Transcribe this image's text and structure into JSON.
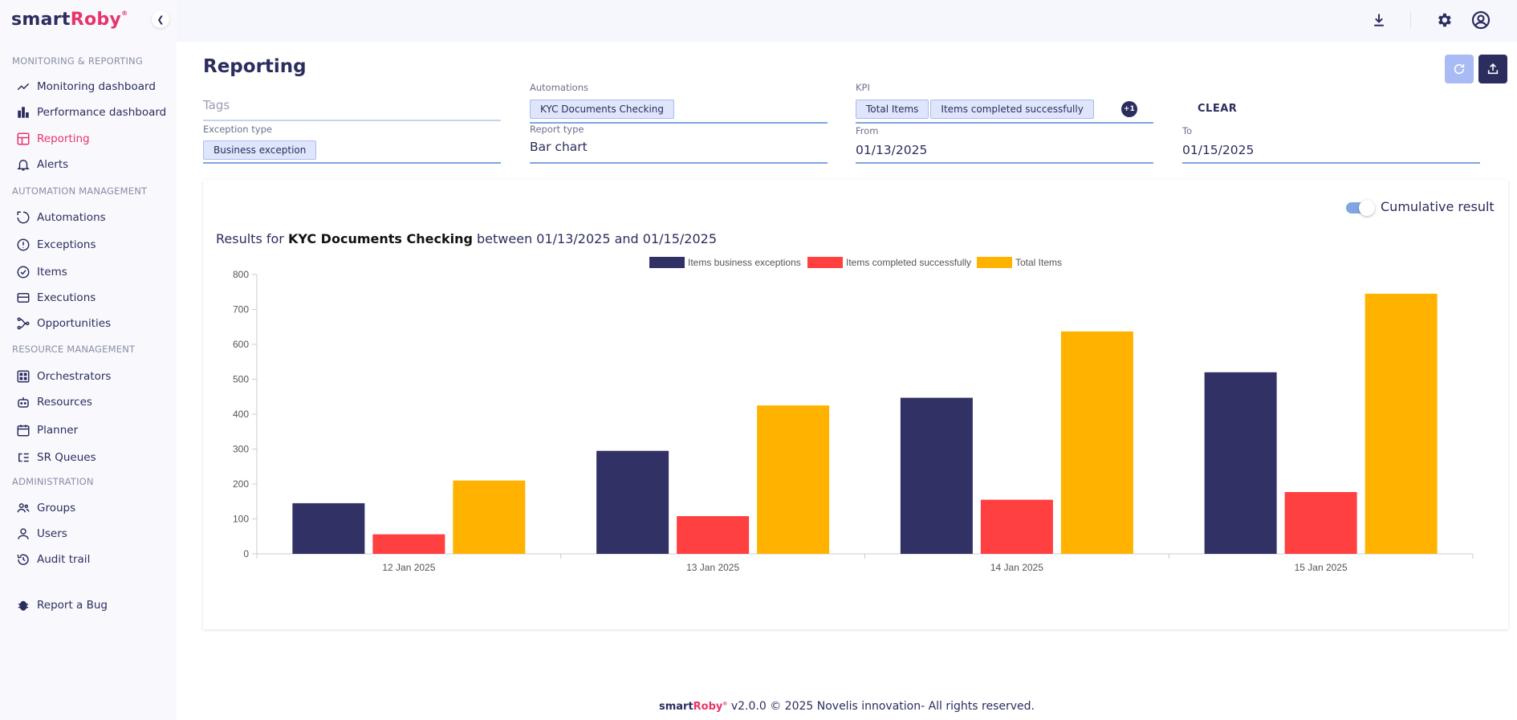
{
  "app": {
    "logo_main": "smart",
    "logo_accent": "Roby",
    "logo_mark": "®"
  },
  "sidebar": {
    "sections": [
      {
        "title": "MONITORING & REPORTING"
      },
      {
        "title": "AUTOMATION MANAGEMENT"
      },
      {
        "title": "RESOURCE MANAGEMENT"
      },
      {
        "title": "ADMINISTRATION"
      }
    ],
    "items": [
      {
        "label": "Monitoring dashboard",
        "icon": "trend-line-icon"
      },
      {
        "label": "Performance dashboard",
        "icon": "bar-chart-icon"
      },
      {
        "label": "Reporting",
        "icon": "layout-icon",
        "active": true
      },
      {
        "label": "Alerts",
        "icon": "bell-icon"
      },
      {
        "label": "Automations",
        "icon": "loop-icon"
      },
      {
        "label": "Exceptions",
        "icon": "alert-circle-icon"
      },
      {
        "label": "Items",
        "icon": "check-circle-icon"
      },
      {
        "label": "Executions",
        "icon": "card-icon"
      },
      {
        "label": "Opportunities",
        "icon": "branch-icon"
      },
      {
        "label": "Orchestrators",
        "icon": "grid-icon"
      },
      {
        "label": "Resources",
        "icon": "robot-icon"
      },
      {
        "label": "Planner",
        "icon": "calendar-icon"
      },
      {
        "label": "SR Queues",
        "icon": "queue-icon"
      },
      {
        "label": "Groups",
        "icon": "users-icon"
      },
      {
        "label": "Users",
        "icon": "user-icon"
      },
      {
        "label": "Audit trail",
        "icon": "history-icon"
      },
      {
        "label": "Report a Bug",
        "icon": "bug-icon"
      }
    ]
  },
  "page": {
    "title": "Reporting"
  },
  "filters": {
    "tags_placeholder": "Tags",
    "automations_label": "Automations",
    "automations_chip": "KYC Documents Checking",
    "kpi_label": "KPI",
    "kpi_chips": [
      "Total Items",
      "Items completed successfully"
    ],
    "kpi_more": "+1",
    "clear_label": "CLEAR",
    "exception_type_label": "Exception type",
    "exception_type_chip": "Business exception",
    "report_type_label": "Report type",
    "report_type_value": "Bar chart",
    "from_label": "From",
    "from_value": "01/13/2025",
    "to_label": "To",
    "to_value": "01/15/2025"
  },
  "result": {
    "cumulative_label": "Cumulative result",
    "cumulative_on": true,
    "title_prefix": "Results for",
    "title_automation": "KYC Documents Checking",
    "title_between": "between 01/13/2025 and 01/15/2025"
  },
  "chart_data": {
    "type": "bar",
    "categories": [
      "12 Jan 2025",
      "13 Jan 2025",
      "14 Jan 2025",
      "15 Jan 2025"
    ],
    "series": [
      {
        "name": "Items business exceptions",
        "color": "#313165",
        "values": [
          145,
          295,
          447,
          520
        ]
      },
      {
        "name": "Items completed successfully",
        "color": "#ff4040",
        "values": [
          56,
          108,
          155,
          177
        ]
      },
      {
        "name": "Total Items",
        "color": "#ffb300",
        "values": [
          210,
          425,
          637,
          745
        ]
      }
    ],
    "yticks": [
      0,
      100,
      200,
      300,
      400,
      500,
      600,
      700,
      800
    ],
    "ylim": [
      0,
      800
    ],
    "legend": "top-center",
    "grid": false
  },
  "footer": {
    "logo_main": "smart",
    "logo_accent": "Roby",
    "logo_mark": "®",
    "text": "v2.0.0 © 2025 Novelis innovation- All rights reserved."
  }
}
